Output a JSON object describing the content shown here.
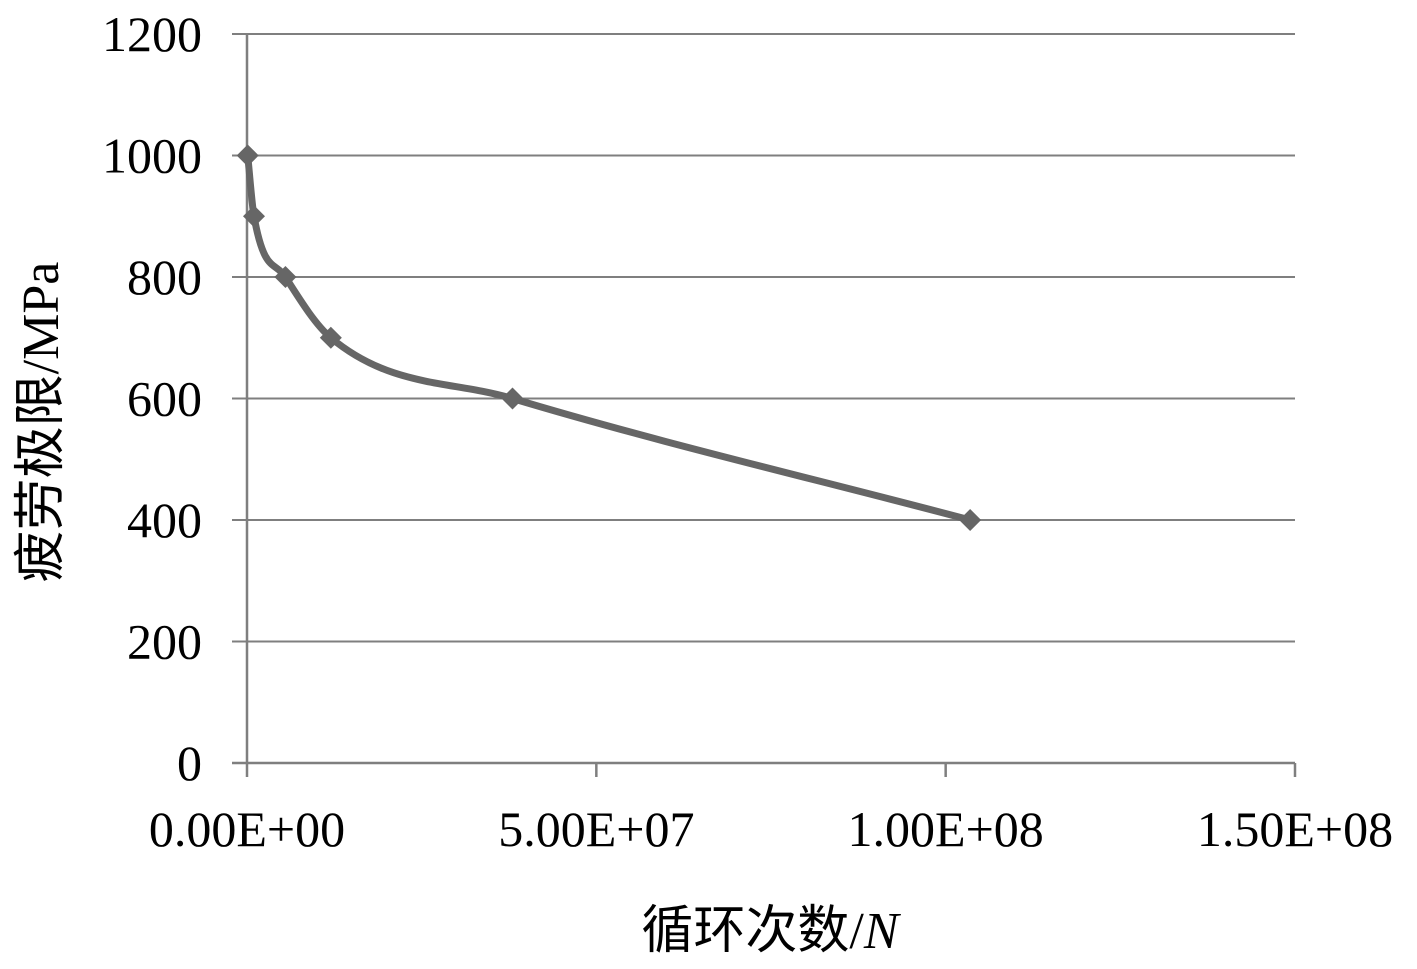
{
  "chart_data": {
    "type": "line",
    "title": "",
    "xlabel_main": "循环次数/",
    "xlabel_var": "N",
    "ylabel": "疲劳极限/MPa",
    "xlim": [
      0,
      150000000
    ],
    "ylim": [
      0,
      1200
    ],
    "xticks": [
      0,
      50000000,
      100000000,
      150000000
    ],
    "xtick_labels": [
      "0.00E+00",
      "5.00E+07",
      "1.00E+08",
      "1.50E+08"
    ],
    "yticks": [
      0,
      200,
      400,
      600,
      800,
      1000,
      1200
    ],
    "ytick_labels": [
      "0",
      "200",
      "400",
      "600",
      "800",
      "1000",
      "1200"
    ],
    "grid": "horizontal",
    "smooth": true,
    "marker": "diamond",
    "line_color": "#666666",
    "series": [
      {
        "x": [
          100000,
          1000000,
          5500000,
          12000000,
          38000000,
          103500000
        ],
        "y": [
          1000,
          900,
          800,
          700,
          600,
          400
        ]
      }
    ]
  }
}
